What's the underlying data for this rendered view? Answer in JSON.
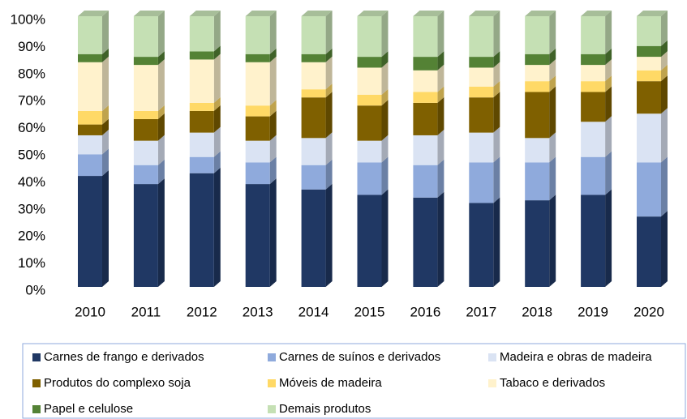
{
  "chart_data": {
    "type": "bar3d_stacked",
    "categories": [
      "2010",
      "2011",
      "2012",
      "2013",
      "2014",
      "2015",
      "2016",
      "2017",
      "2018",
      "2019",
      "2020"
    ],
    "series": [
      {
        "name": "Carnes de frango e derivados",
        "color": "#203864",
        "values": [
          41,
          38,
          42,
          38,
          36,
          34,
          33,
          31,
          32,
          34,
          26
        ]
      },
      {
        "name": "Carnes de suínos e derivados",
        "color": "#8faadc",
        "values": [
          8,
          7,
          6,
          8,
          9,
          12,
          12,
          15,
          14,
          14,
          20
        ]
      },
      {
        "name": "Madeira e obras de madeira",
        "color": "#dae3f3",
        "values": [
          7,
          9,
          9,
          8,
          10,
          8,
          11,
          11,
          9,
          13,
          18
        ]
      },
      {
        "name": "Produtos do complexo soja",
        "color": "#7f6000",
        "values": [
          4,
          8,
          8,
          9,
          15,
          13,
          12,
          13,
          17,
          11,
          12
        ]
      },
      {
        "name": "Móveis de madeira",
        "color": "#ffd966",
        "values": [
          5,
          3,
          3,
          4,
          3,
          4,
          4,
          4,
          4,
          4,
          4
        ]
      },
      {
        "name": "Tabaco e derivados",
        "color": "#fff2cc",
        "values": [
          18,
          17,
          16,
          16,
          10,
          10,
          8,
          7,
          6,
          6,
          5
        ]
      },
      {
        "name": "Papel e celulose",
        "color": "#548235",
        "values": [
          3,
          3,
          3,
          3,
          3,
          4,
          5,
          4,
          4,
          4,
          4
        ]
      },
      {
        "name": "Demais produtos",
        "color": "#c5e0b4",
        "values": [
          14,
          15,
          13,
          14,
          14,
          15,
          15,
          15,
          14,
          14,
          11
        ]
      }
    ],
    "ylim": [
      0,
      100
    ],
    "yticks": [
      {
        "value": 0,
        "label": "0%"
      },
      {
        "value": 10,
        "label": "10%"
      },
      {
        "value": 20,
        "label": "20%"
      },
      {
        "value": 30,
        "label": "30%"
      },
      {
        "value": 40,
        "label": "40%"
      },
      {
        "value": 50,
        "label": "50%"
      },
      {
        "value": 60,
        "label": "60%"
      },
      {
        "value": 70,
        "label": "70%"
      },
      {
        "value": 80,
        "label": "80%"
      },
      {
        "value": 90,
        "label": "90%"
      },
      {
        "value": 100,
        "label": "100%"
      }
    ],
    "grid": false,
    "legend": "bottom"
  }
}
